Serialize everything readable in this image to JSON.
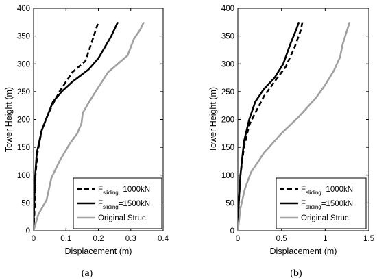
{
  "chart_data": [
    {
      "type": "line",
      "panel_label": {
        "open": "(",
        "letter": "a",
        "close": ")"
      },
      "xlabel": "Displacement (m)",
      "ylabel": "Tower Height (m)",
      "xlim": [
        0,
        0.4
      ],
      "ylim": [
        0,
        400
      ],
      "xticks": [
        "0",
        "0.1",
        "0.2",
        "0.3",
        "0.4"
      ],
      "yticks": [
        "0",
        "50",
        "100",
        "150",
        "200",
        "250",
        "300",
        "350",
        "400"
      ],
      "legend_position": "bottom-right",
      "series": [
        {
          "legend": {
            "main": "F",
            "sub": "sliding",
            "rest": "=1000kN"
          },
          "color": "#000000",
          "dash": "7,4",
          "points": [
            [
              0.0,
              0
            ],
            [
              0.004,
              50
            ],
            [
              0.006,
              100
            ],
            [
              0.012,
              140
            ],
            [
              0.025,
              180
            ],
            [
              0.045,
              210
            ],
            [
              0.06,
              228
            ],
            [
              0.08,
              250
            ],
            [
              0.1,
              268
            ],
            [
              0.12,
              285
            ],
            [
              0.16,
              305
            ],
            [
              0.18,
              340
            ],
            [
              0.2,
              375
            ]
          ]
        },
        {
          "legend": {
            "main": "F",
            "sub": "sliding",
            "rest": "=1500kN"
          },
          "color": "#000000",
          "dash": "",
          "points": [
            [
              0.0,
              0
            ],
            [
              0.002,
              50
            ],
            [
              0.005,
              100
            ],
            [
              0.01,
              140
            ],
            [
              0.025,
              180
            ],
            [
              0.045,
              210
            ],
            [
              0.06,
              232
            ],
            [
              0.09,
              252
            ],
            [
              0.12,
              268
            ],
            [
              0.17,
              290
            ],
            [
              0.2,
              310
            ],
            [
              0.24,
              350
            ],
            [
              0.26,
              375
            ]
          ]
        },
        {
          "legend": {
            "main": "Original Struc.",
            "sub": "",
            "rest": ""
          },
          "color": "#a0a0a0",
          "dash": "",
          "points": [
            [
              0.0,
              0
            ],
            [
              0.015,
              30
            ],
            [
              0.04,
              55
            ],
            [
              0.055,
              95
            ],
            [
              0.08,
              125
            ],
            [
              0.11,
              155
            ],
            [
              0.135,
              175
            ],
            [
              0.148,
              193
            ],
            [
              0.152,
              212
            ],
            [
              0.17,
              230
            ],
            [
              0.2,
              258
            ],
            [
              0.23,
              285
            ],
            [
              0.26,
              300
            ],
            [
              0.29,
              315
            ],
            [
              0.31,
              345
            ],
            [
              0.33,
              362
            ],
            [
              0.34,
              375
            ]
          ]
        }
      ]
    },
    {
      "type": "line",
      "panel_label": {
        "open": "(",
        "letter": "b",
        "close": ")"
      },
      "xlabel": "Displacement (m)",
      "ylabel": "Tower Height (m)",
      "xlim": [
        0,
        1.5
      ],
      "ylim": [
        0,
        400
      ],
      "xticks": [
        "0",
        "0.5",
        "1",
        "1.5"
      ],
      "yticks": [
        "0",
        "50",
        "100",
        "150",
        "200",
        "250",
        "300",
        "350",
        "400"
      ],
      "legend_position": "bottom-right",
      "series": [
        {
          "legend": {
            "main": "F",
            "sub": "sliding",
            "rest": "=1000kN"
          },
          "color": "#000000",
          "dash": "7,4",
          "points": [
            [
              0.0,
              0
            ],
            [
              0.01,
              50
            ],
            [
              0.03,
              100
            ],
            [
              0.07,
              150
            ],
            [
              0.13,
              190
            ],
            [
              0.2,
              212
            ],
            [
              0.3,
              242
            ],
            [
              0.42,
              268
            ],
            [
              0.55,
              295
            ],
            [
              0.65,
              330
            ],
            [
              0.72,
              360
            ],
            [
              0.74,
              375
            ]
          ]
        },
        {
          "legend": {
            "main": "F",
            "sub": "sliding",
            "rest": "=1500kN"
          },
          "color": "#000000",
          "dash": "",
          "points": [
            [
              0.0,
              0
            ],
            [
              0.01,
              50
            ],
            [
              0.03,
              100
            ],
            [
              0.07,
              160
            ],
            [
              0.13,
              200
            ],
            [
              0.2,
              232
            ],
            [
              0.3,
              255
            ],
            [
              0.42,
              275
            ],
            [
              0.52,
              300
            ],
            [
              0.6,
              335
            ],
            [
              0.67,
              362
            ],
            [
              0.7,
              375
            ]
          ]
        },
        {
          "legend": {
            "main": "Original Struc.",
            "sub": "",
            "rest": ""
          },
          "color": "#a0a0a0",
          "dash": "",
          "points": [
            [
              0.0,
              0
            ],
            [
              0.03,
              40
            ],
            [
              0.08,
              75
            ],
            [
              0.15,
              105
            ],
            [
              0.3,
              140
            ],
            [
              0.5,
              175
            ],
            [
              0.7,
              205
            ],
            [
              0.9,
              240
            ],
            [
              1.0,
              262
            ],
            [
              1.1,
              288
            ],
            [
              1.17,
              312
            ],
            [
              1.2,
              335
            ],
            [
              1.24,
              355
            ],
            [
              1.28,
              375
            ]
          ]
        }
      ]
    }
  ]
}
